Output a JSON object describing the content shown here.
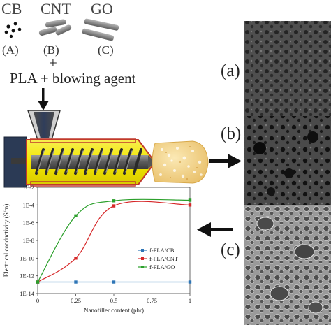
{
  "fillers": {
    "cb_label": "CB",
    "cnt_label": "CNT",
    "go_label": "GO",
    "a_label": "(A)",
    "b_label": "(B)",
    "c_label": "(C)"
  },
  "plus_sign": "+",
  "mixture_label": "PLA + blowing agent",
  "sem": {
    "a_label": "(a)",
    "b_label": "(b)",
    "c_label": "(c)"
  },
  "colors": {
    "cb": "#2e75b6",
    "cnt": "#d62728",
    "go": "#2ca02c",
    "extruder_barrel": "#f2e600",
    "extruder_outline": "#c0392b",
    "extruder_dark": "#2b3a55",
    "foam": "#f5d98c"
  },
  "chart_data": {
    "type": "line",
    "xlabel": "Nanofiller content (phr)",
    "ylabel": "Electrical conductivity (S/m)",
    "x_ticks": [
      "0",
      "0.25",
      "0.5",
      "0.75",
      "1"
    ],
    "y_ticks": [
      "1E-14",
      "1E-12",
      "1E-10",
      "1E-8",
      "1E-6",
      "1E-4",
      "1E-2"
    ],
    "xlim": [
      0,
      1
    ],
    "ylim_log10": [
      -14,
      -2
    ],
    "y_scale": "log",
    "legend_position": "right-middle",
    "series": [
      {
        "name": "f-PLA/CB",
        "color": "#2e75b6",
        "x": [
          0,
          0.25,
          0.5,
          1
        ],
        "y": [
          2e-13,
          2e-13,
          2e-13,
          2e-13
        ]
      },
      {
        "name": "f-PLA/CNT",
        "color": "#d62728",
        "x": [
          0,
          0.25,
          0.5,
          1
        ],
        "y": [
          2e-13,
          1e-10,
          8e-05,
          0.0001
        ]
      },
      {
        "name": "f-PLA/GO",
        "color": "#2ca02c",
        "x": [
          0,
          0.25,
          0.5,
          1
        ],
        "y": [
          2e-13,
          6e-06,
          0.0003,
          0.00035
        ]
      }
    ]
  }
}
